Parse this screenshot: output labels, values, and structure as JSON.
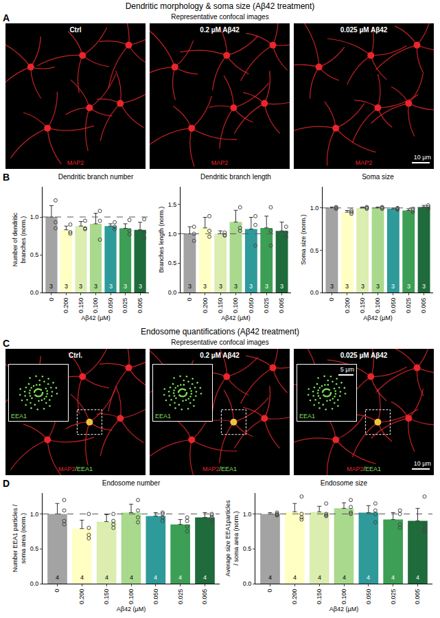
{
  "sections": [
    {
      "title": "Dendritic morphology & soma size (Aβ42 treatment)",
      "image_letter": "A",
      "image_subtitle": "Representative confocal images",
      "images": [
        {
          "label": "Ctrl",
          "stain": "MAP2"
        },
        {
          "label": "0.2 µM Aβ42",
          "stain": "MAP2"
        },
        {
          "label": "0.025 µM Aβ42",
          "stain": "MAP2",
          "scale_bar": "10 µm"
        }
      ],
      "chart_letter": "B"
    },
    {
      "title": "Endosome quantifications (Aβ42 treatment)",
      "image_letter": "C",
      "image_subtitle": "Representative confocal images",
      "images": [
        {
          "label": "Ctrl.",
          "stain": "MAP2/EEA1",
          "inset_label": "EEA1"
        },
        {
          "label": "0.2 µM Aβ42",
          "stain": "MAP2/EEA1",
          "inset_label": "EEA1"
        },
        {
          "label": "0.025 µM Aβ42",
          "stain": "MAP2/EEA1",
          "inset_label": "EEA1",
          "inset_scale_bar": "5 µm",
          "scale_bar": "10 µm"
        }
      ],
      "chart_letter": "D"
    }
  ],
  "chart_data": [
    {
      "type": "bar",
      "title": "Dendritic branch number",
      "categories": [
        "0",
        "0.200",
        "0.150",
        "0.100",
        "0.050",
        "0.025",
        "0.005"
      ],
      "values": [
        1.0,
        0.83,
        0.88,
        0.91,
        0.88,
        0.85,
        0.83
      ],
      "errors": [
        0.15,
        0.05,
        0.06,
        0.14,
        0.03,
        0.06,
        0.1
      ],
      "points": [
        [
          1.22,
          0.93,
          0.85
        ],
        [
          0.9,
          0.8,
          0.78
        ],
        [
          0.95,
          0.85,
          0.84
        ],
        [
          1.08,
          0.95,
          0.7
        ],
        [
          0.93,
          0.87,
          0.84
        ],
        [
          0.96,
          0.82,
          0.77
        ],
        [
          0.97,
          0.8,
          0.72
        ]
      ],
      "n": [
        3,
        3,
        3,
        3,
        3,
        3,
        3
      ],
      "colors": [
        "#a3a3a3",
        "#ffffc4",
        "#dcedb0",
        "#a9d98d",
        "#2f9a9a",
        "#3d9f55",
        "#1f6b3b"
      ],
      "ylabel": "Number of dendritic branches (norm.)",
      "xlabel": "Aβ42 (µM)",
      "ylim": [
        0,
        1.4
      ],
      "yticks": [
        {
          "value": 0,
          "label": "0.0"
        },
        {
          "value": 0.5,
          "label": "0.5"
        },
        {
          "value": 1,
          "label": "1.0"
        }
      ],
      "reference_line": 1
    },
    {
      "type": "bar",
      "title": "Dendritic branch length",
      "categories": [
        "0",
        "0.200",
        "0.150",
        "0.100",
        "0.050",
        "0.025",
        "0.005"
      ],
      "values": [
        1.0,
        1.1,
        1.0,
        1.2,
        1.08,
        1.1,
        1.05
      ],
      "errors": [
        0.12,
        0.18,
        0.05,
        0.2,
        0.2,
        0.2,
        0.15
      ],
      "points": [
        [
          1.12,
          1.0,
          0.88
        ],
        [
          1.3,
          1.05,
          0.95
        ],
        [
          1.02,
          0.98,
          0.97
        ],
        [
          1.45,
          1.1,
          1.05
        ],
        [
          1.3,
          1.15,
          0.8
        ],
        [
          1.45,
          1.05,
          0.8
        ],
        [
          1.12,
          1.02,
          0.95
        ]
      ],
      "n": [
        3,
        3,
        3,
        3,
        3,
        3,
        3
      ],
      "colors": [
        "#a3a3a3",
        "#ffffc4",
        "#dcedb0",
        "#a9d98d",
        "#2f9a9a",
        "#3d9f55",
        "#1f6b3b"
      ],
      "ylabel": "Branches length (norm.)",
      "xlabel": "Aβ42 (µM)",
      "ylim": [
        0,
        1.8
      ],
      "yticks": [
        {
          "value": 0,
          "label": "0.0"
        },
        {
          "value": 0.5,
          "label": "0.5"
        },
        {
          "value": 1,
          "label": "1.0"
        },
        {
          "value": 1.5,
          "label": "1.5"
        }
      ],
      "reference_line": 1
    },
    {
      "type": "bar",
      "title": "Soma size",
      "categories": [
        "0",
        "0.200",
        "0.150",
        "0.100",
        "0.050",
        "0.025",
        "0.005"
      ],
      "values": [
        1.0,
        0.95,
        1.0,
        1.0,
        0.99,
        0.97,
        1.01
      ],
      "errors": [
        0.01,
        0.02,
        0.01,
        0.01,
        0.01,
        0.02,
        0.02
      ],
      "points": [
        [
          1.01,
          1.0,
          0.99
        ],
        [
          0.97,
          0.95,
          0.93
        ],
        [
          1.01,
          1.0,
          0.99
        ],
        [
          1.01,
          1.0,
          0.99
        ],
        [
          1.0,
          0.99,
          0.98
        ],
        [
          0.99,
          0.97,
          0.95
        ],
        [
          1.03,
          1.01,
          0.99
        ]
      ],
      "n": [
        3,
        3,
        3,
        3,
        3,
        3,
        3
      ],
      "colors": [
        "#a3a3a3",
        "#ffffc4",
        "#dcedb0",
        "#a9d98d",
        "#2f9a9a",
        "#3d9f55",
        "#1f6b3b"
      ],
      "ylabel": "Soma size (norm.)",
      "xlabel": "Aβ42 (µM)",
      "ylim": [
        0,
        1.25
      ],
      "yticks": [
        {
          "value": 0,
          "label": "0.0"
        },
        {
          "value": 0.5,
          "label": "0.5"
        },
        {
          "value": 1,
          "label": "1.0"
        }
      ],
      "reference_line": 1
    },
    {
      "type": "bar",
      "title": "Endosome number",
      "categories": [
        "0",
        "0.200",
        "0.150",
        "0.100",
        "0.050",
        "0.025",
        "0.005"
      ],
      "values": [
        1.0,
        0.79,
        0.89,
        1.02,
        0.97,
        0.85,
        0.95
      ],
      "errors": [
        0.15,
        0.12,
        0.1,
        0.12,
        0.05,
        0.07,
        0.07
      ],
      "points": [
        [
          1.2,
          1.05,
          0.9,
          0.85
        ],
        [
          1.0,
          0.8,
          0.7,
          0.65
        ],
        [
          1.0,
          0.9,
          0.85,
          0.8
        ],
        [
          1.2,
          1.05,
          0.95,
          0.88
        ],
        [
          1.02,
          1.0,
          0.95,
          0.9
        ],
        [
          0.95,
          0.9,
          0.82,
          0.75
        ],
        [
          1.0,
          0.98,
          0.95,
          0.88
        ]
      ],
      "n": [
        4,
        4,
        4,
        4,
        4,
        4,
        4
      ],
      "colors": [
        "#a3a3a3",
        "#ffffc4",
        "#dcedb0",
        "#a9d98d",
        "#2f9a9a",
        "#3d9f55",
        "#1f6b3b"
      ],
      "ylabel": "Number EEA1 particles / soma area (norm.)",
      "xlabel": "Aβ42 (µM)",
      "ylim": [
        0,
        1.3
      ],
      "yticks": [
        {
          "value": 0,
          "label": "0.0"
        },
        {
          "value": 0.5,
          "label": "0.5"
        },
        {
          "value": 1,
          "label": "1.0"
        }
      ],
      "reference_line": 1
    },
    {
      "type": "bar",
      "title": "Endosome size",
      "categories": [
        "0",
        "0.200",
        "0.150",
        "0.100",
        "0.050",
        "0.025",
        "0.005"
      ],
      "values": [
        1.0,
        1.03,
        1.03,
        1.08,
        1.02,
        0.92,
        0.9
      ],
      "errors": [
        0.02,
        0.12,
        0.08,
        0.08,
        0.1,
        0.1,
        0.18
      ],
      "points": [
        [
          1.02,
          1.0,
          0.99,
          0.98
        ],
        [
          1.25,
          1.0,
          0.95,
          0.92
        ],
        [
          1.15,
          1.0,
          0.98,
          0.97
        ],
        [
          1.2,
          1.1,
          1.02,
          1.0
        ],
        [
          1.15,
          1.05,
          1.0,
          0.88
        ],
        [
          1.05,
          1.0,
          0.85,
          0.8
        ],
        [
          1.25,
          0.85,
          0.78,
          0.75
        ]
      ],
      "n": [
        4,
        4,
        4,
        4,
        4,
        4,
        4
      ],
      "colors": [
        "#a3a3a3",
        "#ffffc4",
        "#dcedb0",
        "#a9d98d",
        "#2f9a9a",
        "#3d9f55",
        "#1f6b3b"
      ],
      "ylabel": "Average size EEA1particles / soma area (norm.)",
      "xlabel": "Aβ42 (µM)",
      "ylim": [
        0,
        1.3
      ],
      "yticks": [
        {
          "value": 0,
          "label": "0.0"
        },
        {
          "value": 0.5,
          "label": "0.5"
        },
        {
          "value": 1,
          "label": "1.0"
        }
      ],
      "reference_line": 1
    }
  ]
}
